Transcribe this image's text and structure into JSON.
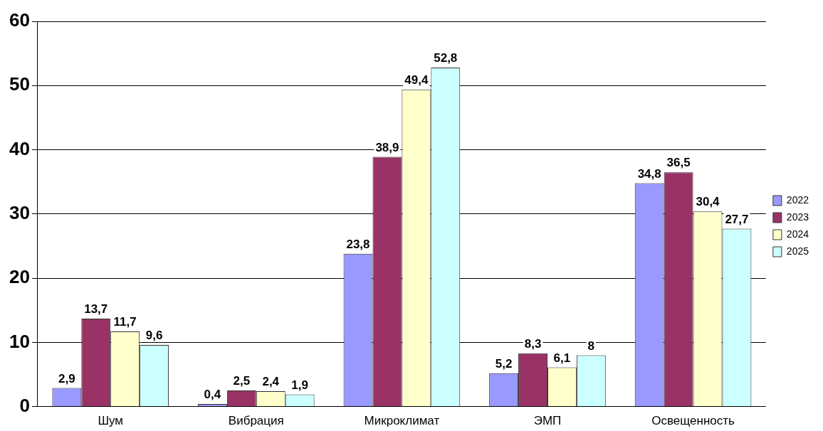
{
  "chart_data": {
    "type": "bar",
    "categories": [
      "Шум",
      "Вибрация",
      "Микроклимат",
      "ЭМП",
      "Освещенность"
    ],
    "series": [
      {
        "name": "2022",
        "color": "#9999ff",
        "values": [
          2.9,
          0.4,
          23.8,
          5.2,
          34.8
        ],
        "value_labels": [
          "2,9",
          "0,4",
          "23,8",
          "5,2",
          "34,8"
        ]
      },
      {
        "name": "2023",
        "color": "#993366",
        "values": [
          13.7,
          2.5,
          38.9,
          8.3,
          36.5
        ],
        "value_labels": [
          "13,7",
          "2,5",
          "38,9",
          "8,3",
          "36,5"
        ]
      },
      {
        "name": "2024",
        "color": "#ffffcc",
        "values": [
          11.7,
          2.4,
          49.4,
          6.1,
          30.4
        ],
        "value_labels": [
          "11,7",
          "2,4",
          "49,4",
          "6,1",
          "30,4"
        ]
      },
      {
        "name": "2025",
        "color": "#ccffff",
        "values": [
          9.6,
          1.9,
          52.8,
          8,
          27.7
        ],
        "value_labels": [
          "9,6",
          "1,9",
          "52,8",
          "8",
          "27,7"
        ]
      }
    ],
    "ylim": [
      0,
      60
    ],
    "yticks": [
      0,
      10,
      20,
      30,
      40,
      50,
      60
    ],
    "grid": "y",
    "legend": "right"
  }
}
